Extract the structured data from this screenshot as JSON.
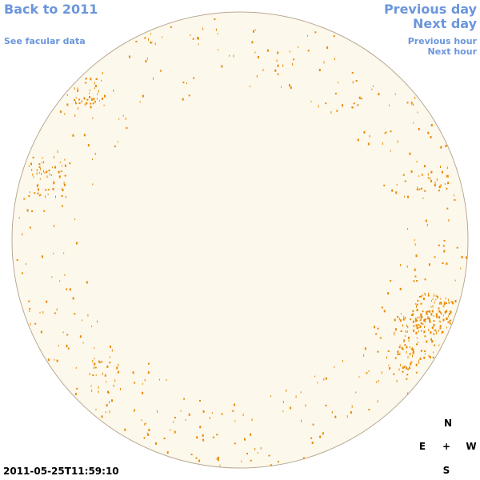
{
  "nav": {
    "back_year": "Back to 2011",
    "facular_data": "See facular data",
    "previous_day": "Previous day",
    "next_day": "Next day",
    "previous_hour": "Previous hour",
    "next_hour": "Next hour"
  },
  "timestamp": "2011-05-25T11:59:10",
  "compass": {
    "north": "N",
    "east": "E",
    "center": "+",
    "west": "W",
    "south": "S"
  }
}
